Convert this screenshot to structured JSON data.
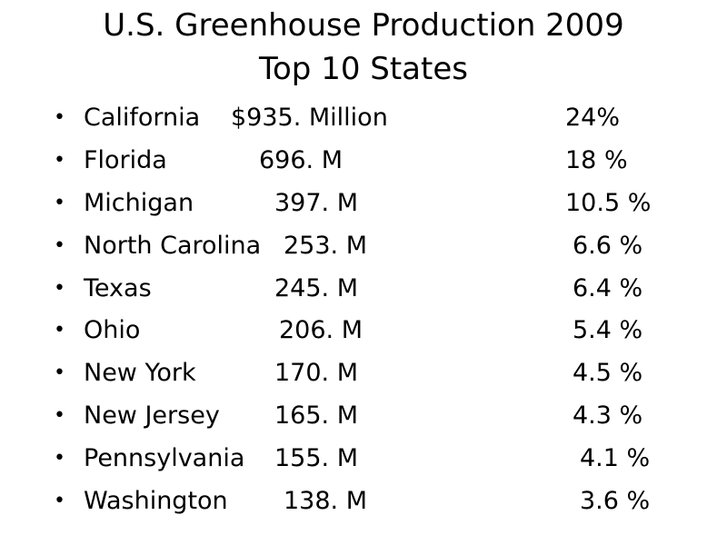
{
  "title": {
    "line1": "U.S. Greenhouse Production 2009",
    "line2": "Top 10 States"
  },
  "bullet_glyph": "•",
  "rows": [
    {
      "state": "California",
      "value": "$935. Million",
      "percent": "24%"
    },
    {
      "state": "Florida",
      "value": "696. M",
      "percent": "18 %"
    },
    {
      "state": "Michigan",
      "value": "397. M",
      "percent": "10.5 %"
    },
    {
      "state": "North Carolina",
      "value": "253. M",
      "percent": "6.6 %"
    },
    {
      "state": "Texas",
      "value": "245. M",
      "percent": "6.4 %"
    },
    {
      "state": "Ohio",
      "value": "206. M",
      "percent": "5.4 %"
    },
    {
      "state": "New York",
      "value": "170. M",
      "percent": "4.5 %"
    },
    {
      "state": "New Jersey",
      "value": "165. M",
      "percent": "4.3 %"
    },
    {
      "state": "Pennsylvania",
      "value": "155. M",
      "percent": "4.1 %"
    },
    {
      "state": "Washington",
      "value": "138. M",
      "percent": "3.6 %"
    }
  ]
}
